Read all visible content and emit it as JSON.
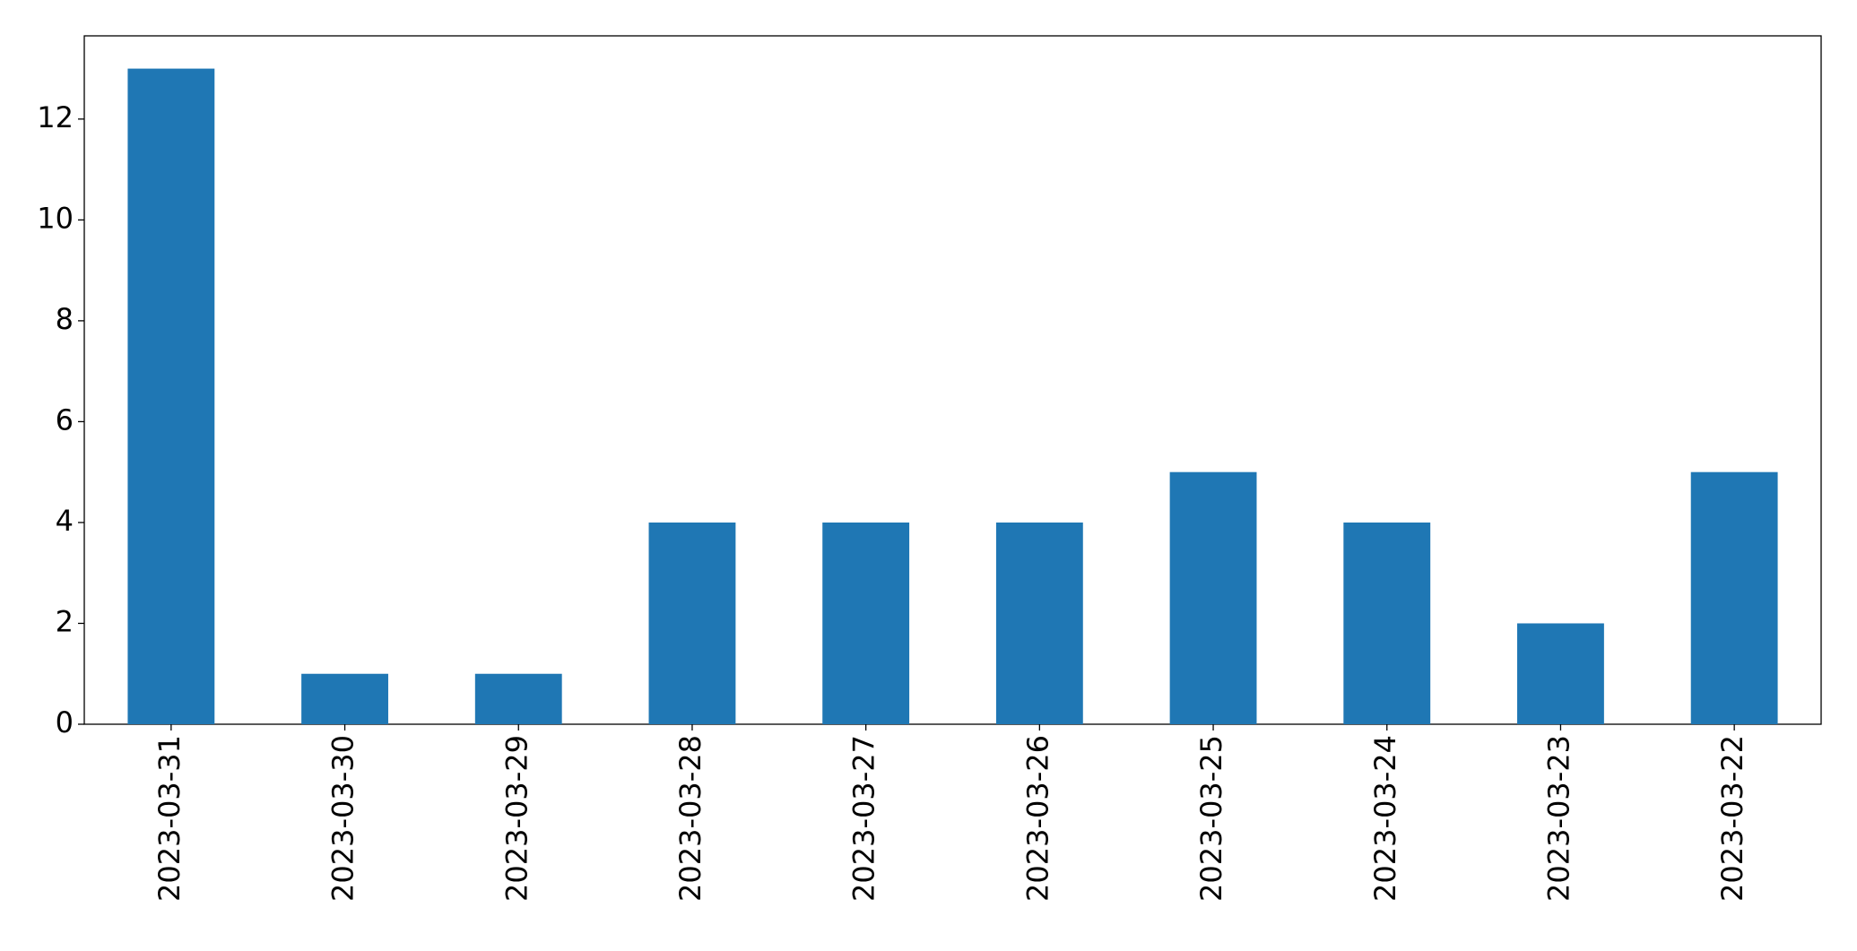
{
  "chart_data": {
    "type": "bar",
    "categories": [
      "2023-03-31",
      "2023-03-30",
      "2023-03-29",
      "2023-03-28",
      "2023-03-27",
      "2023-03-26",
      "2023-03-25",
      "2023-03-24",
      "2023-03-23",
      "2023-03-22"
    ],
    "values": [
      13,
      1,
      1,
      4,
      4,
      4,
      5,
      4,
      2,
      5
    ],
    "color": "#1f77b4",
    "ylim": [
      0,
      13.65
    ],
    "yticks": [
      0,
      2,
      4,
      6,
      8,
      10,
      12
    ],
    "grid": false
  }
}
